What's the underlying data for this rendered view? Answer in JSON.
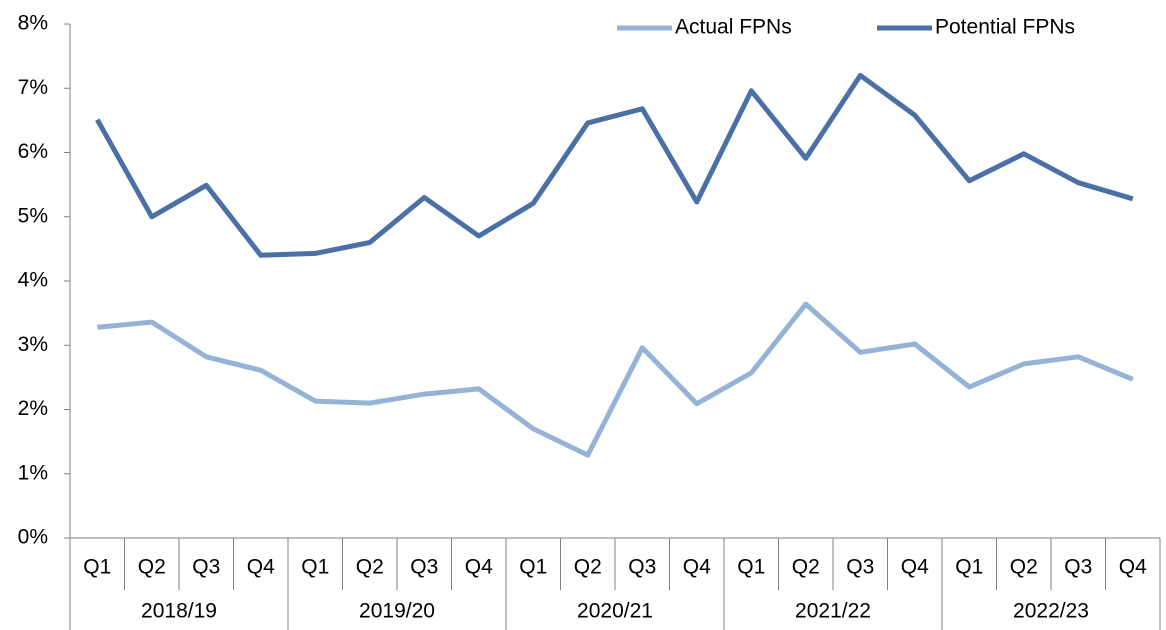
{
  "chart_data": {
    "type": "line",
    "categories": [
      "Q1",
      "Q2",
      "Q3",
      "Q4",
      "Q1",
      "Q2",
      "Q3",
      "Q4",
      "Q1",
      "Q2",
      "Q3",
      "Q4",
      "Q1",
      "Q2",
      "Q3",
      "Q4",
      "Q1",
      "Q2",
      "Q3",
      "Q4"
    ],
    "category_groups": [
      "2018/19",
      "2019/20",
      "2020/21",
      "2021/22",
      "2022/23"
    ],
    "series": [
      {
        "name": "Actual FPNs",
        "color": "#95b3d7",
        "values": [
          3.28,
          3.36,
          2.82,
          2.61,
          2.13,
          2.1,
          2.24,
          2.32,
          1.7,
          1.29,
          2.96,
          2.09,
          2.57,
          3.64,
          2.89,
          3.02,
          2.35,
          2.71,
          2.82,
          2.47
        ]
      },
      {
        "name": "Potential FPNs",
        "color": "#4a70a6",
        "values": [
          6.51,
          5.0,
          5.49,
          4.4,
          4.43,
          4.6,
          5.3,
          4.7,
          5.21,
          6.46,
          6.68,
          5.23,
          6.96,
          5.91,
          7.2,
          6.58,
          5.56,
          5.98,
          5.53,
          5.28
        ]
      }
    ],
    "ylim": [
      0,
      8
    ],
    "yticks": [
      {
        "value": 0,
        "label": "0%"
      },
      {
        "value": 1,
        "label": "1%"
      },
      {
        "value": 2,
        "label": "2%"
      },
      {
        "value": 3,
        "label": "3%"
      },
      {
        "value": 4,
        "label": "4%"
      },
      {
        "value": 5,
        "label": "5%"
      },
      {
        "value": 6,
        "label": "6%"
      },
      {
        "value": 7,
        "label": "7%"
      },
      {
        "value": 8,
        "label": "8%"
      }
    ],
    "legend": "top-right"
  }
}
